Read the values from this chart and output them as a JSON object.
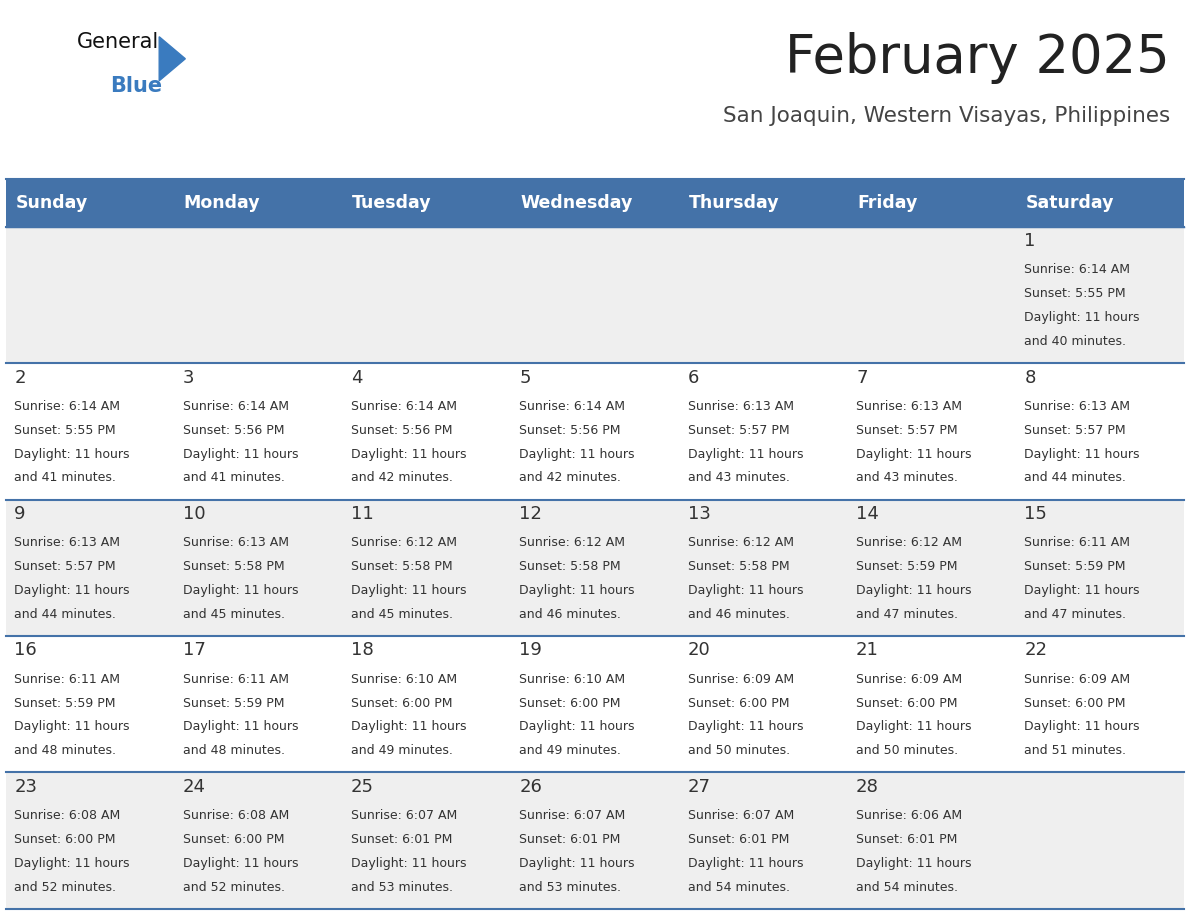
{
  "title": "February 2025",
  "subtitle": "San Joaquin, Western Visayas, Philippines",
  "days_of_week": [
    "Sunday",
    "Monday",
    "Tuesday",
    "Wednesday",
    "Thursday",
    "Friday",
    "Saturday"
  ],
  "header_bg": "#4472a8",
  "header_text": "#ffffff",
  "row_bg_even": "#efefef",
  "row_bg_odd": "#ffffff",
  "cell_border": "#4472a8",
  "day_number_color": "#333333",
  "cell_text_color": "#333333",
  "calendar_data": [
    [
      null,
      null,
      null,
      null,
      null,
      null,
      {
        "day": 1,
        "sunrise": "6:14 AM",
        "sunset": "5:55 PM",
        "daylight": "11 hours and 40 minutes"
      }
    ],
    [
      {
        "day": 2,
        "sunrise": "6:14 AM",
        "sunset": "5:55 PM",
        "daylight": "11 hours and 41 minutes"
      },
      {
        "day": 3,
        "sunrise": "6:14 AM",
        "sunset": "5:56 PM",
        "daylight": "11 hours and 41 minutes"
      },
      {
        "day": 4,
        "sunrise": "6:14 AM",
        "sunset": "5:56 PM",
        "daylight": "11 hours and 42 minutes"
      },
      {
        "day": 5,
        "sunrise": "6:14 AM",
        "sunset": "5:56 PM",
        "daylight": "11 hours and 42 minutes"
      },
      {
        "day": 6,
        "sunrise": "6:13 AM",
        "sunset": "5:57 PM",
        "daylight": "11 hours and 43 minutes"
      },
      {
        "day": 7,
        "sunrise": "6:13 AM",
        "sunset": "5:57 PM",
        "daylight": "11 hours and 43 minutes"
      },
      {
        "day": 8,
        "sunrise": "6:13 AM",
        "sunset": "5:57 PM",
        "daylight": "11 hours and 44 minutes"
      }
    ],
    [
      {
        "day": 9,
        "sunrise": "6:13 AM",
        "sunset": "5:57 PM",
        "daylight": "11 hours and 44 minutes"
      },
      {
        "day": 10,
        "sunrise": "6:13 AM",
        "sunset": "5:58 PM",
        "daylight": "11 hours and 45 minutes"
      },
      {
        "day": 11,
        "sunrise": "6:12 AM",
        "sunset": "5:58 PM",
        "daylight": "11 hours and 45 minutes"
      },
      {
        "day": 12,
        "sunrise": "6:12 AM",
        "sunset": "5:58 PM",
        "daylight": "11 hours and 46 minutes"
      },
      {
        "day": 13,
        "sunrise": "6:12 AM",
        "sunset": "5:58 PM",
        "daylight": "11 hours and 46 minutes"
      },
      {
        "day": 14,
        "sunrise": "6:12 AM",
        "sunset": "5:59 PM",
        "daylight": "11 hours and 47 minutes"
      },
      {
        "day": 15,
        "sunrise": "6:11 AM",
        "sunset": "5:59 PM",
        "daylight": "11 hours and 47 minutes"
      }
    ],
    [
      {
        "day": 16,
        "sunrise": "6:11 AM",
        "sunset": "5:59 PM",
        "daylight": "11 hours and 48 minutes"
      },
      {
        "day": 17,
        "sunrise": "6:11 AM",
        "sunset": "5:59 PM",
        "daylight": "11 hours and 48 minutes"
      },
      {
        "day": 18,
        "sunrise": "6:10 AM",
        "sunset": "6:00 PM",
        "daylight": "11 hours and 49 minutes"
      },
      {
        "day": 19,
        "sunrise": "6:10 AM",
        "sunset": "6:00 PM",
        "daylight": "11 hours and 49 minutes"
      },
      {
        "day": 20,
        "sunrise": "6:09 AM",
        "sunset": "6:00 PM",
        "daylight": "11 hours and 50 minutes"
      },
      {
        "day": 21,
        "sunrise": "6:09 AM",
        "sunset": "6:00 PM",
        "daylight": "11 hours and 50 minutes"
      },
      {
        "day": 22,
        "sunrise": "6:09 AM",
        "sunset": "6:00 PM",
        "daylight": "11 hours and 51 minutes"
      }
    ],
    [
      {
        "day": 23,
        "sunrise": "6:08 AM",
        "sunset": "6:00 PM",
        "daylight": "11 hours and 52 minutes"
      },
      {
        "day": 24,
        "sunrise": "6:08 AM",
        "sunset": "6:00 PM",
        "daylight": "11 hours and 52 minutes"
      },
      {
        "day": 25,
        "sunrise": "6:07 AM",
        "sunset": "6:01 PM",
        "daylight": "11 hours and 53 minutes"
      },
      {
        "day": 26,
        "sunrise": "6:07 AM",
        "sunset": "6:01 PM",
        "daylight": "11 hours and 53 minutes"
      },
      {
        "day": 27,
        "sunrise": "6:07 AM",
        "sunset": "6:01 PM",
        "daylight": "11 hours and 54 minutes"
      },
      {
        "day": 28,
        "sunrise": "6:06 AM",
        "sunset": "6:01 PM",
        "daylight": "11 hours and 54 minutes"
      },
      null
    ]
  ]
}
